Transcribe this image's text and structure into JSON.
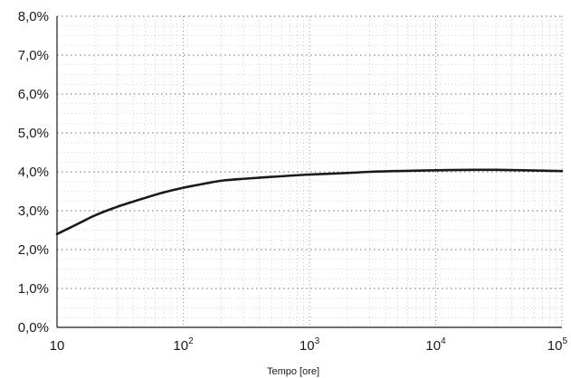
{
  "chart_data": {
    "type": "line",
    "title": "",
    "xlabel": "Tempo [ore]",
    "ylabel": "",
    "x_scale": "log",
    "xlim": [
      10,
      100000
    ],
    "ylim": [
      0,
      8
    ],
    "grid": true,
    "y_ticks": [
      {
        "value": 0,
        "label": "0,0%"
      },
      {
        "value": 1,
        "label": "1,0%"
      },
      {
        "value": 2,
        "label": "2,0%"
      },
      {
        "value": 3,
        "label": "3,0%"
      },
      {
        "value": 4,
        "label": "4,0%"
      },
      {
        "value": 5,
        "label": "5,0%"
      },
      {
        "value": 6,
        "label": "6,0%"
      },
      {
        "value": 7,
        "label": "7,0%"
      },
      {
        "value": 8,
        "label": "8,0%"
      }
    ],
    "x_ticks": [
      {
        "value": 10,
        "base": "10",
        "exp": ""
      },
      {
        "value": 100,
        "base": "10",
        "exp": "2"
      },
      {
        "value": 1000,
        "base": "10",
        "exp": "3"
      },
      {
        "value": 10000,
        "base": "10",
        "exp": "4"
      },
      {
        "value": 100000,
        "base": "10",
        "exp": "5"
      }
    ],
    "series": [
      {
        "color": "#1a1a1a",
        "x": [
          10,
          15,
          20,
          30,
          50,
          70,
          100,
          150,
          200,
          300,
          500,
          1000,
          2000,
          3000,
          5000,
          10000,
          20000,
          30000,
          50000,
          100000
        ],
        "y": [
          2.4,
          2.68,
          2.88,
          3.1,
          3.33,
          3.47,
          3.59,
          3.7,
          3.77,
          3.82,
          3.87,
          3.93,
          3.97,
          4.0,
          4.02,
          4.04,
          4.05,
          4.05,
          4.04,
          4.02
        ]
      }
    ]
  }
}
